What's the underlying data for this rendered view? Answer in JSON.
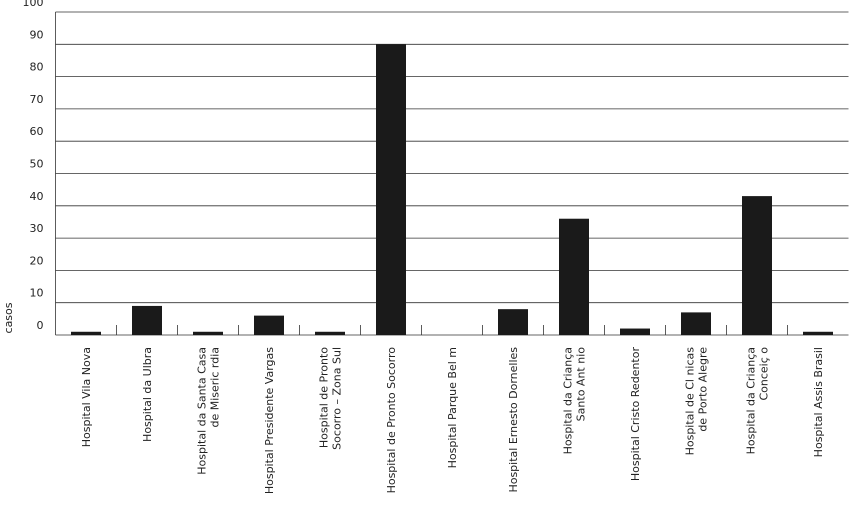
{
  "chart_data": {
    "type": "bar",
    "y_label": "casos",
    "categories": [
      [
        "Hospital Vila Nova"
      ],
      [
        "Hospital da Ulbra"
      ],
      [
        "Hospital da Santa Casa",
        "de Miseric rdia"
      ],
      [
        "Hospital Presidente Vargas"
      ],
      [
        "Hospital de Pronto",
        "Socorro – Zona Sul"
      ],
      [
        "Hospital de Pronto Socorro"
      ],
      [
        "Hospital Parque Bel m"
      ],
      [
        "Hospital Ernesto Dornelles"
      ],
      [
        "Hospital da Criança",
        "Santo Ant nio"
      ],
      [
        "Hospital Cristo Redentor"
      ],
      [
        "Hospital de Cl nicas",
        "de Porto Alegre"
      ],
      [
        "Hospital da Criança",
        "Conceiç o"
      ],
      [
        "Hospital Assis Brasil"
      ]
    ],
    "values": [
      1,
      9,
      1,
      6,
      1,
      90,
      0,
      8,
      36,
      2,
      7,
      43,
      1
    ],
    "color": "#1a1a1a",
    "ylim": [
      0,
      100
    ],
    "yticks": [
      0,
      10,
      20,
      30,
      40,
      50,
      60,
      70,
      80,
      90,
      100
    ],
    "grid": true
  }
}
